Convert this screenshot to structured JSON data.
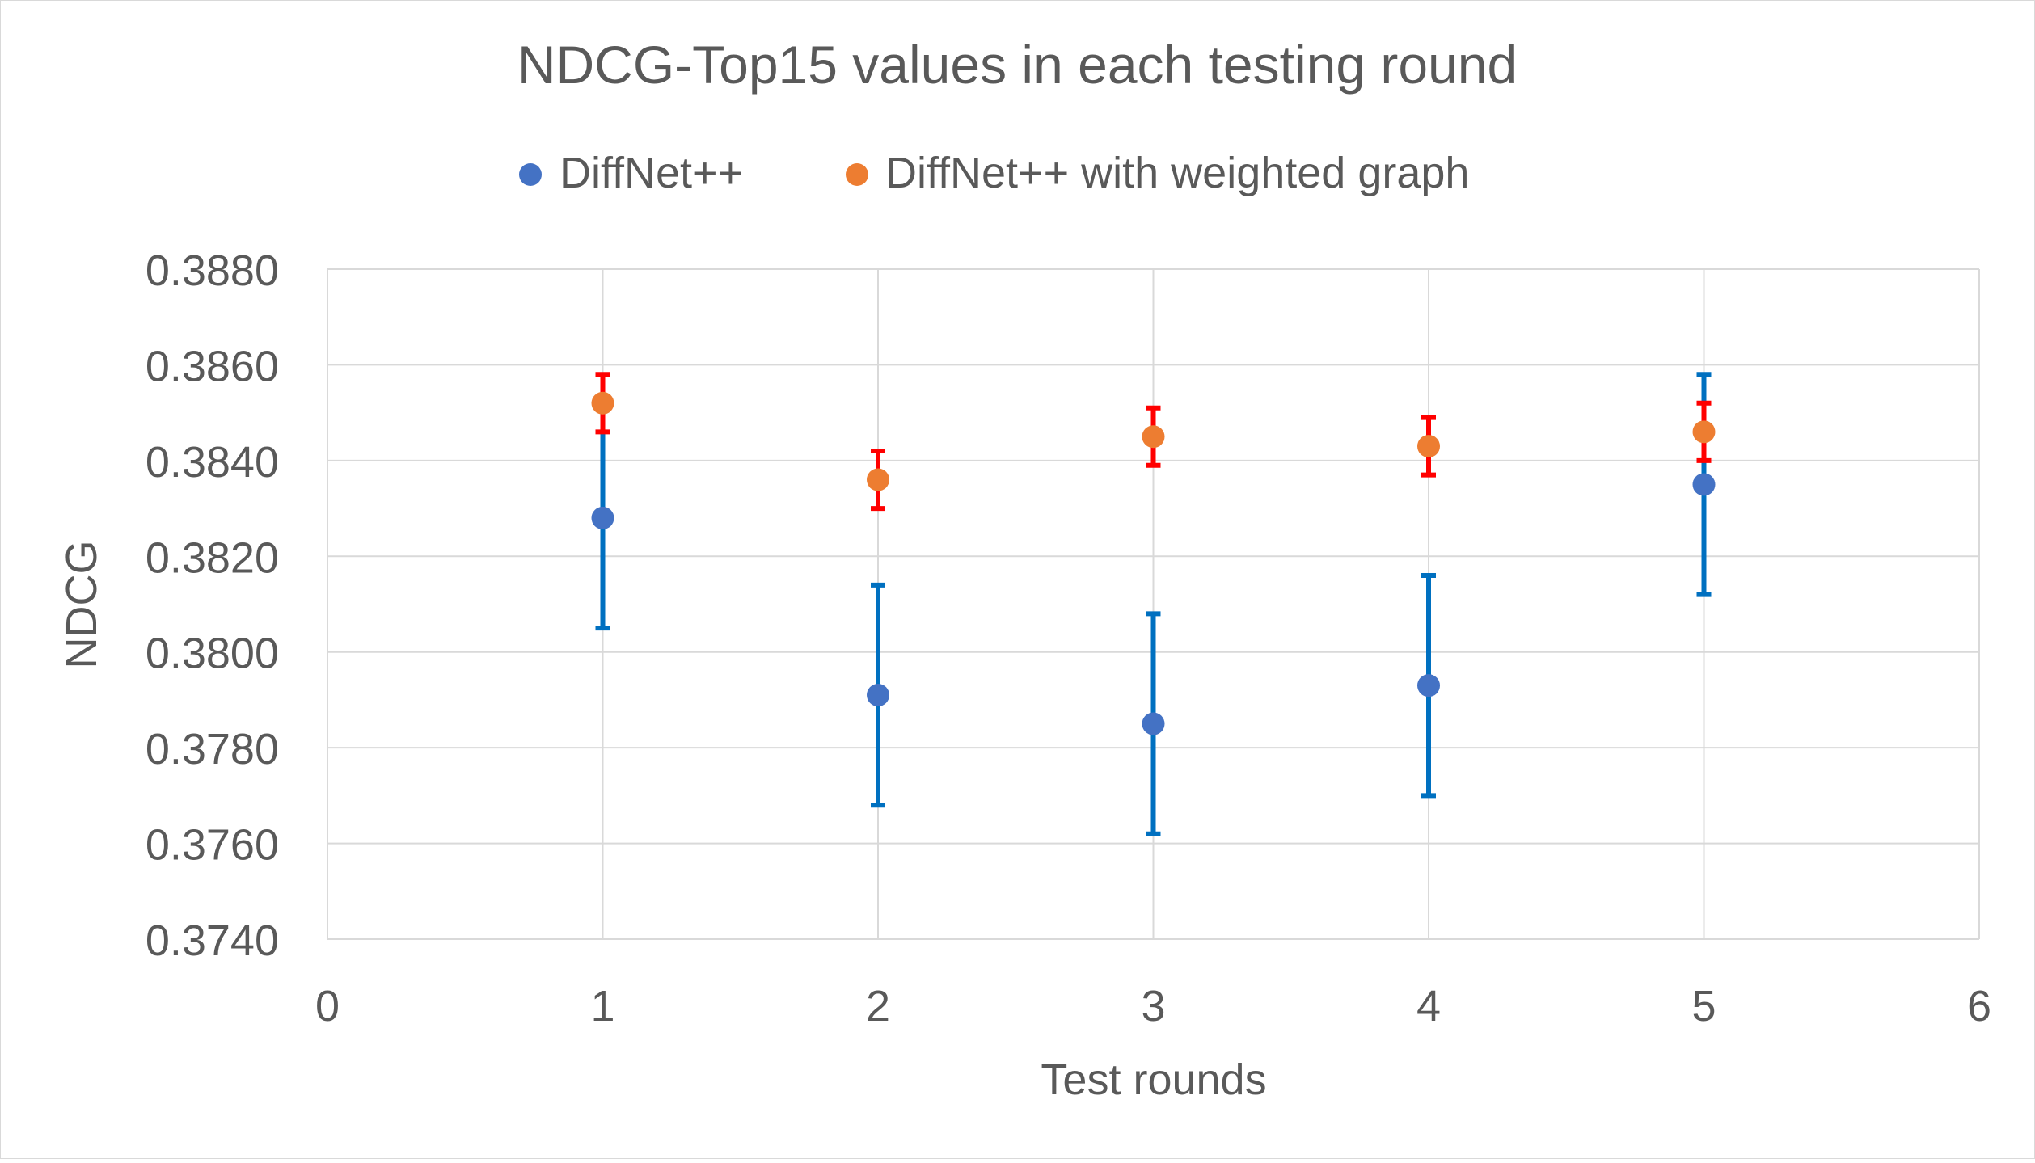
{
  "chart_data": {
    "type": "scatter",
    "title": "NDCG-Top15 values in each testing round",
    "xlabel": "Test rounds",
    "ylabel": "NDCG",
    "xlim": [
      0,
      6
    ],
    "ylim": [
      0.374,
      0.388
    ],
    "x_ticks": [
      "0",
      "1",
      "2",
      "3",
      "4",
      "5",
      "6"
    ],
    "y_ticks": [
      "0.3740",
      "0.3760",
      "0.3780",
      "0.3800",
      "0.3820",
      "0.3840",
      "0.3860",
      "0.3880"
    ],
    "grid": true,
    "legend_position": "top",
    "series": [
      {
        "name": "DiffNet++",
        "color": "#4472C4",
        "error_bar_color": "#0070C0",
        "x": [
          1,
          2,
          3,
          4,
          5
        ],
        "y": [
          0.3828,
          0.3791,
          0.3785,
          0.3793,
          0.3835
        ],
        "err_low": [
          0.3805,
          0.3768,
          0.3762,
          0.377,
          0.3812
        ],
        "err_high": [
          0.3851,
          0.3814,
          0.3808,
          0.3816,
          0.3858
        ]
      },
      {
        "name": "DiffNet++ with weighted graph",
        "color": "#ED7D31",
        "error_bar_color": "#FF0000",
        "x": [
          1,
          2,
          3,
          4,
          5
        ],
        "y": [
          0.3852,
          0.3836,
          0.3845,
          0.3843,
          0.3846
        ],
        "err_low": [
          0.3846,
          0.383,
          0.3839,
          0.3837,
          0.384
        ],
        "err_high": [
          0.3858,
          0.3842,
          0.3851,
          0.3849,
          0.3852
        ]
      }
    ]
  }
}
